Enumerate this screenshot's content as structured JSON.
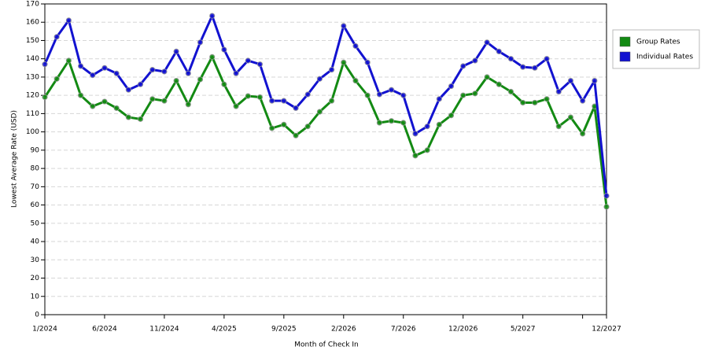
{
  "chart_data": {
    "type": "line",
    "xlabel": "Month of Check In",
    "ylabel": "Lowest Average Rate (USD)",
    "categories": [
      "1/2024",
      null,
      null,
      null,
      null,
      "6/2024",
      null,
      null,
      null,
      null,
      "11/2024",
      null,
      null,
      null,
      null,
      "4/2025",
      null,
      null,
      null,
      null,
      "9/2025",
      null,
      null,
      null,
      null,
      "2/2026",
      null,
      null,
      null,
      null,
      "7/2026",
      null,
      null,
      null,
      null,
      "12/2026",
      null,
      null,
      null,
      null,
      "5/2027",
      null,
      null,
      null,
      null,
      null,
      null,
      "12/2027"
    ],
    "series": [
      {
        "name": "Group Rates",
        "color": "#138a13",
        "values": [
          119,
          129,
          139,
          120,
          114,
          116.6,
          113,
          108,
          107,
          118,
          117,
          128,
          115,
          128.7,
          141,
          126,
          114,
          119.6,
          119,
          102,
          104,
          98,
          103,
          111,
          117,
          138,
          128,
          120,
          105,
          106,
          105,
          87,
          90,
          104,
          109,
          120,
          121,
          130,
          126,
          122,
          116,
          116,
          118,
          103,
          108,
          99,
          114,
          59
        ]
      },
      {
        "name": "Individual Rates",
        "color": "#1212d0",
        "values": [
          137,
          152,
          161,
          136,
          131,
          135,
          132,
          123,
          126,
          134,
          133,
          144,
          132,
          149,
          163.5,
          145,
          132,
          139,
          137,
          117,
          117,
          113,
          120.5,
          129,
          134,
          158,
          147,
          138,
          120.5,
          123,
          120,
          99,
          103,
          118,
          125,
          136,
          139,
          149,
          144,
          140,
          135.5,
          135,
          140,
          122,
          128,
          117,
          128,
          65
        ]
      }
    ],
    "ylim": [
      0,
      170
    ],
    "yticks": [
      0,
      10,
      20,
      30,
      40,
      50,
      60,
      70,
      80,
      90,
      100,
      110,
      120,
      130,
      140,
      150,
      160,
      170
    ],
    "grid": true,
    "legend": "upper right"
  }
}
